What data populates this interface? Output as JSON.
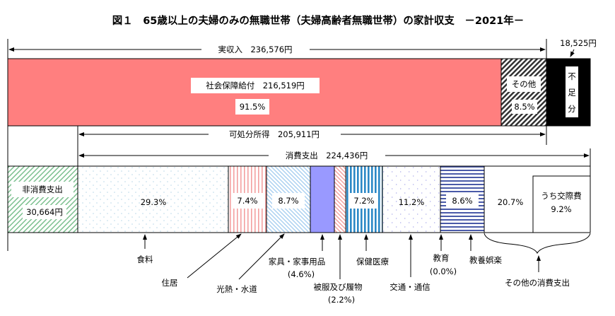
{
  "title": "図１　65歳以上の夫婦のみの無職世帯（夫婦高齢者無職世帯）の家計収支　－2021年－",
  "income": {
    "total_label": "実収入　236,576円",
    "social_security_label": "社会保障給付　216,519円",
    "social_security_pct": "91.5%",
    "other_label": "その他",
    "other_pct": "8.5%",
    "shortfall_label": "不足分",
    "shortfall_chars": [
      "不",
      "足",
      "分"
    ],
    "shortfall_amount": "18,525円",
    "disposable_label": "可処分所得　205,911円",
    "consumption_label": "消費支出　224,436円"
  },
  "expenditure": {
    "non_consumption_label": "非消費支出",
    "non_consumption_amount": "30,664円",
    "segments": [
      {
        "name": "食料",
        "pct": "29.3%"
      },
      {
        "name": "住居",
        "pct": "7.4%"
      },
      {
        "name": "光熱・水道",
        "pct": "8.7%"
      },
      {
        "name": "家具・家事用品",
        "pct": "(4.6%)"
      },
      {
        "name": "被服及び履物",
        "pct": "(2.2%)"
      },
      {
        "name": "保健医療",
        "pct": "7.2%"
      },
      {
        "name": "交通・通信",
        "pct": "11.2%"
      },
      {
        "name": "教育",
        "pct": "(0.0%)"
      },
      {
        "name": "教養娯楽",
        "pct": "8.6%"
      },
      {
        "name": "その他の消費支出",
        "pct": "20.7%"
      }
    ],
    "social_expense_label": "うち交際費",
    "social_expense_pct": "9.2%"
  },
  "colors": {
    "social_security": "#ff7f7f",
    "furniture": "#9999ff",
    "shortfall": "#000000"
  }
}
